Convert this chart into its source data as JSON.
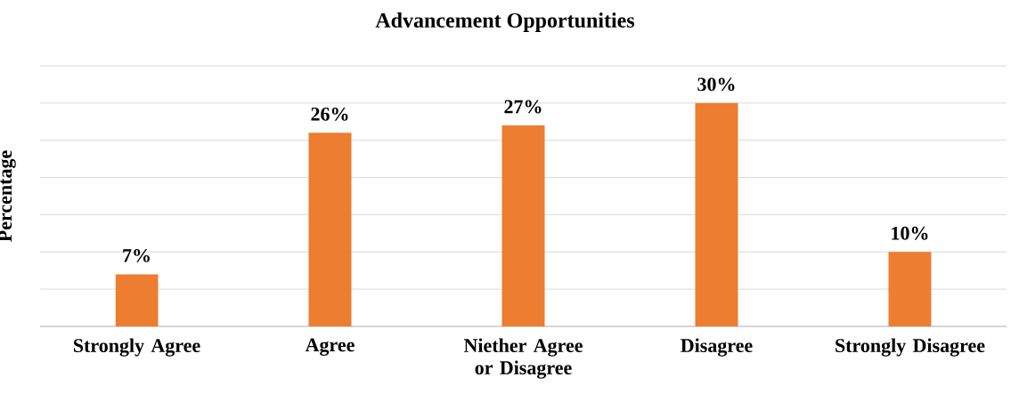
{
  "chart_data": {
    "type": "bar",
    "title": "Advancement Opportunities",
    "ylabel": "Percentage",
    "categories": [
      "Strongly Agree",
      "Agree",
      "Niether Agree or Disagree",
      "Disagree",
      "Strongly Disagree"
    ],
    "values": [
      7,
      26,
      27,
      30,
      10
    ],
    "value_labels": [
      "7%",
      "26%",
      "27%",
      "30%",
      "10%"
    ],
    "color": "#ed7d31",
    "ylim": [
      0,
      35
    ],
    "yticks": [
      {
        "value": 0,
        "label": null
      },
      {
        "value": 5,
        "label": null
      },
      {
        "value": 10,
        "label": null
      },
      {
        "value": 15,
        "label": null
      },
      {
        "value": 20,
        "label": null
      },
      {
        "value": 25,
        "label": null
      },
      {
        "value": 30,
        "label": null
      },
      {
        "value": 35,
        "label": null
      }
    ],
    "grid": true
  }
}
